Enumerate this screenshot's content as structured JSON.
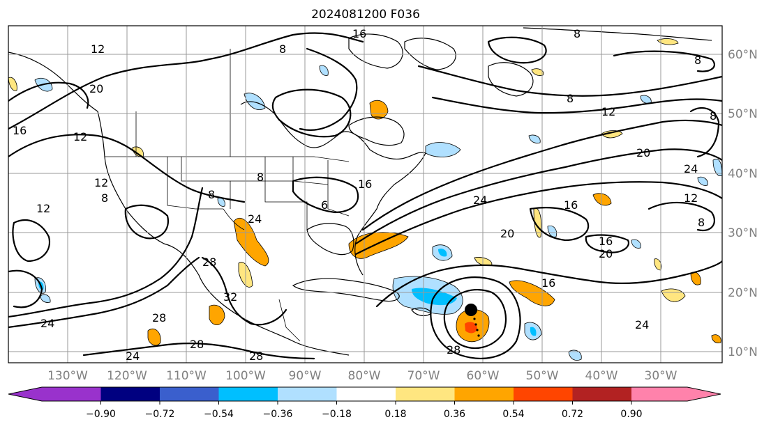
{
  "title": "2024081200 F036",
  "lon_labels": [
    "130°W",
    "120°W",
    "110°W",
    "100°W",
    "90°W",
    "80°W",
    "70°W",
    "60°W",
    "50°W",
    "40°W",
    "30°W"
  ],
  "lat_labels": [
    "60°N",
    "50°N",
    "40°N",
    "30°N",
    "20°N",
    "10°N"
  ],
  "colorbar": {
    "ticks": [
      "−0.90",
      "−0.72",
      "−0.54",
      "−0.36",
      "−0.18",
      "0.18",
      "0.36",
      "0.54",
      "0.72",
      "0.90"
    ],
    "colors": [
      "#9932cc",
      "#000080",
      "#3a5fcd",
      "#00bfff",
      "#b0e0ff",
      "#ffffff",
      "#ffe680",
      "#ffa500",
      "#ff4500",
      "#b22222",
      "#ff82ab"
    ]
  },
  "contour_labels": [
    "8",
    "16",
    "20",
    "12",
    "16",
    "12",
    "12",
    "8",
    "12",
    "8",
    "8",
    "24",
    "16",
    "24",
    "28",
    "32",
    "28",
    "24",
    "28",
    "28",
    "24",
    "20",
    "16",
    "16",
    "20",
    "24",
    "12",
    "8",
    "8",
    "8",
    "24",
    "20",
    "12",
    "16",
    "8",
    "8",
    "6",
    "28"
  ],
  "legend_colors": {
    "storm_marker": "#000000"
  }
}
